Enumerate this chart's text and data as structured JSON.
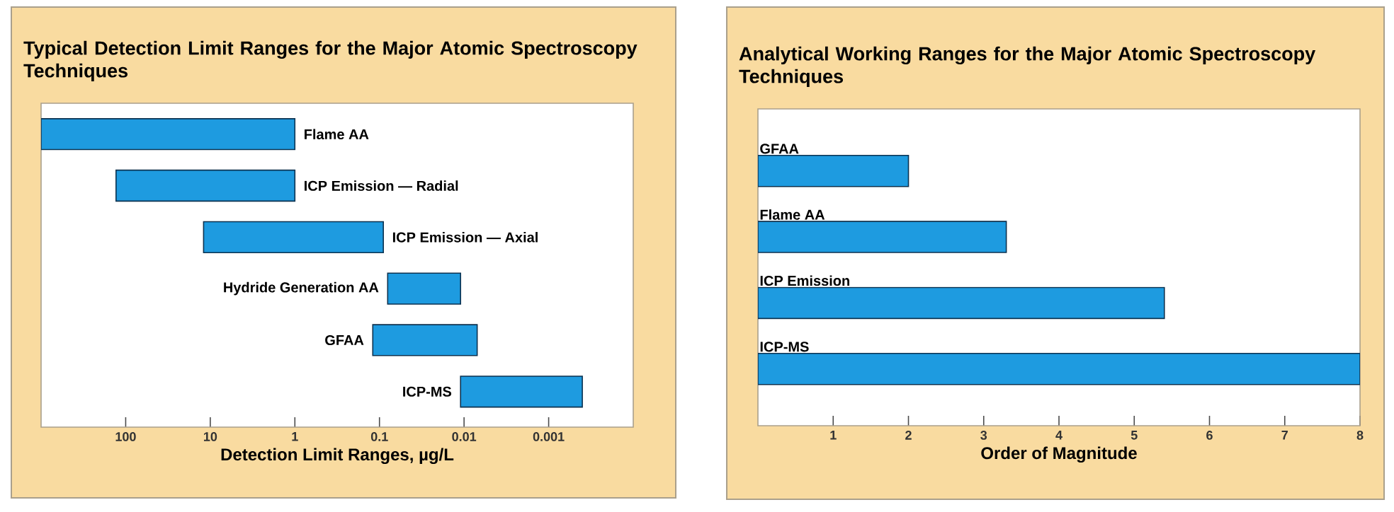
{
  "chart_data": [
    {
      "type": "bar",
      "orientation": "horizontal",
      "title": "Typical Detection Limit Ranges for the Major Atomic Spectroscopy Techniques",
      "xlabel": "Detection Limit Ranges, µg/L",
      "categories": [
        "Flame AA",
        "ICP Emission — Radial",
        "ICP Emission — Axial",
        "Hydride Generation AA",
        "GFAA",
        "ICP-MS"
      ],
      "base": [
        1,
        1,
        0.09,
        0.011,
        0.007,
        0.0004
      ],
      "values": [
        999,
        129,
        11.91,
        0.069,
        0.113,
        0.0106
      ],
      "color": "#1e9be0",
      "log": "x",
      "xlim": [
        1000,
        0.0001
      ],
      "xticks": [
        100,
        10,
        1,
        0.1,
        0.01,
        0.001
      ],
      "tick_labels": "x"
    },
    {
      "type": "bar",
      "orientation": "horizontal",
      "title": "Analytical Working Ranges for the Major Atomic Spectroscopy Techniques",
      "xlabel": "Order of Magnitude",
      "categories": [
        "GFAA",
        "Flame AA",
        "ICP Emission",
        "ICP-MS"
      ],
      "values": [
        2,
        3.3,
        5.4,
        8
      ],
      "color": "#1e9be0",
      "xlim": [
        0,
        8
      ],
      "xticks": [
        1,
        2,
        3,
        4,
        5,
        6,
        7,
        8
      ],
      "tick_labels": "x"
    }
  ]
}
